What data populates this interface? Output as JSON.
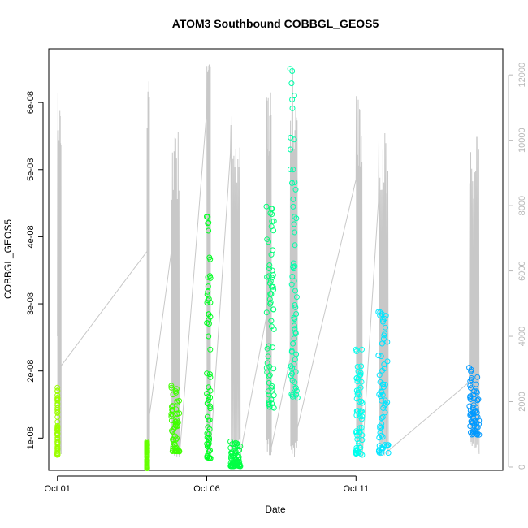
{
  "chart_data": {
    "type": "scatter",
    "title": "ATOM3 Southbound COBBGL_GEOS5",
    "xlabel": "Date",
    "ylabel": "COBBGL_GEOS5",
    "x_ticks": [
      "Oct 01",
      "Oct 06",
      "Oct 11"
    ],
    "y_ticks": [
      "1e-08",
      "2e-08",
      "3e-08",
      "4e-08",
      "5e-08",
      "6e-08"
    ],
    "y2_ticks": [
      "0",
      "2000",
      "4000",
      "6000",
      "8000",
      "10000",
      "12000"
    ],
    "xlim": [
      "2016-09-30T17:00",
      "2016-10-15T22:00"
    ],
    "ylim": [
      5.2e-09,
      6.8e-08
    ],
    "y2lim": [
      -100,
      12800
    ],
    "grid": false,
    "colors": {
      "points_scale": [
        "#9cff00",
        "#66ff00",
        "#00ff33",
        "#00ff99",
        "#00ffee",
        "#00e5ff",
        "#0099ff"
      ],
      "altitude_line": "#c8c8c8",
      "right_axis": "#b8b8b8"
    },
    "series": [
      {
        "x": [
          "2016-10-01T00:00",
          "2016-10-01T00:05"
        ],
        "values": [
          1.75e-08,
          7.5e-09
        ],
        "color": "#9cff00"
      },
      {
        "x": [
          "2016-10-04T00:00",
          "2016-10-04T00:08"
        ],
        "values": [
          9.5e-09,
          5.5e-09
        ],
        "color": "#66ff00"
      },
      {
        "x": [
          "2016-10-04T19:30",
          "2016-10-05T02:00"
        ],
        "values": [
          1.78e-08,
          8e-09
        ],
        "color": "#40ff00"
      },
      {
        "x": [
          "2016-10-06T00:00",
          "2016-10-06T03:00"
        ],
        "values": [
          4.3e-08,
          7e-09
        ],
        "color": "#00ff22"
      },
      {
        "x": [
          "2016-10-06T19:00",
          "2016-10-07T03:00"
        ],
        "values": [
          9.5e-09,
          5.8e-09
        ],
        "color": "#00ff44"
      },
      {
        "x": [
          "2016-10-08T00:00",
          "2016-10-08T06:00"
        ],
        "values": [
          4.45e-08,
          1.45e-08
        ],
        "color": "#00ff77"
      },
      {
        "x": [
          "2016-10-08T19:00",
          "2016-10-09T01:00"
        ],
        "values": [
          6.5e-08,
          1.6e-08
        ],
        "color": "#00ffaa"
      },
      {
        "x": [
          "2016-10-11T00:00",
          "2016-10-11T05:00"
        ],
        "values": [
          2.32e-08,
          7.5e-09
        ],
        "color": "#00ffee"
      },
      {
        "x": [
          "2016-10-11T18:00",
          "2016-10-12T02:00"
        ],
        "values": [
          2.88e-08,
          7.8e-09
        ],
        "color": "#00e5ff"
      },
      {
        "x": [
          "2016-10-14T19:00",
          "2016-10-15T03:00"
        ],
        "values": [
          2.05e-08,
          1.05e-08
        ],
        "color": "#0099ff"
      }
    ]
  }
}
